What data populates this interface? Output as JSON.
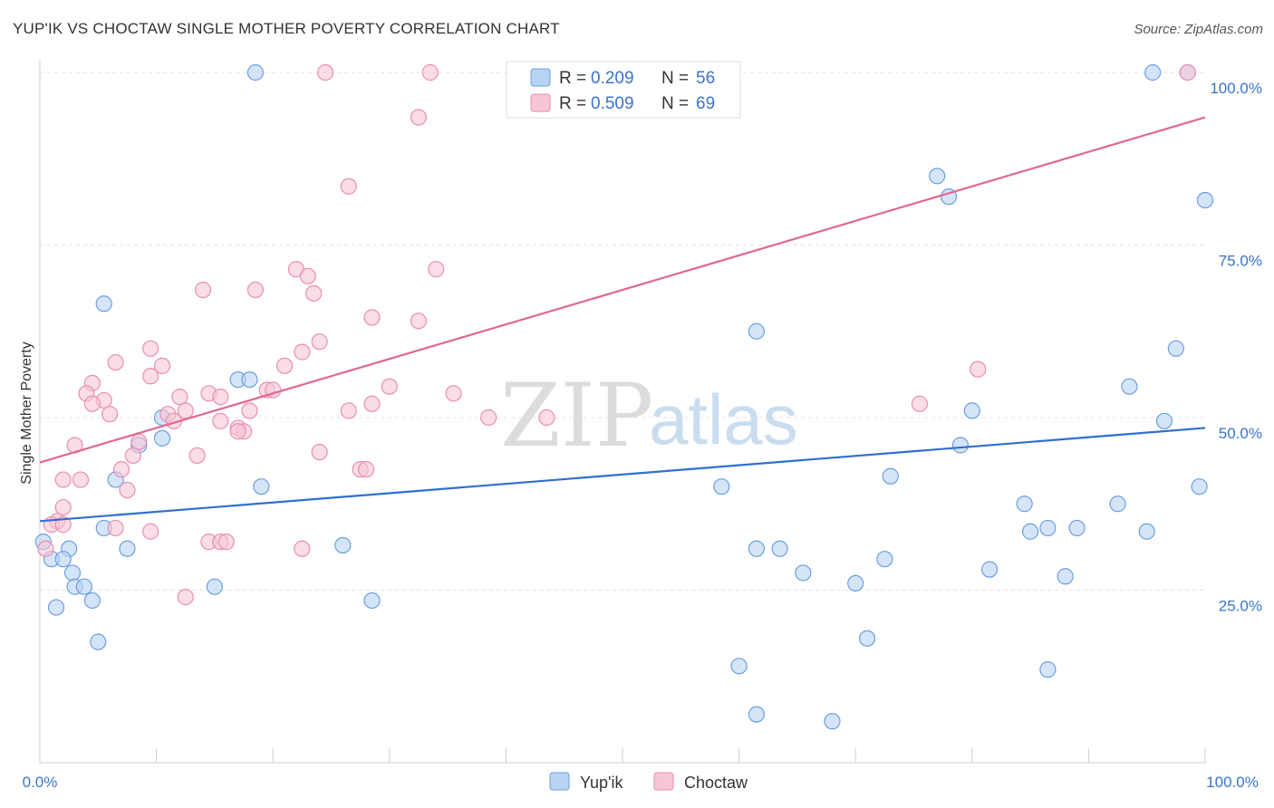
{
  "header": {
    "title": "YUP'IK VS CHOCTAW SINGLE MOTHER POVERTY CORRELATION CHART",
    "source": "Source: ZipAtlas.com"
  },
  "colors": {
    "yupik_fill": "#b9d3f3",
    "yupik_stroke": "#6b9fe0",
    "yupik_line": "#2f6fcf",
    "choctaw_fill": "#f7c6d5",
    "choctaw_stroke": "#e98fae",
    "choctaw_line": "#e06990",
    "tick_label": "#3a74c9"
  },
  "legend": {
    "rows": [
      {
        "r_label": "R =",
        "r_value": "0.209",
        "n_label": "N =",
        "n_value": "56"
      },
      {
        "r_label": "R =",
        "r_value": "0.509",
        "n_label": "N =",
        "n_value": "69"
      }
    ]
  },
  "bottom_legend": {
    "items": [
      "Yup'ik",
      "Choctaw"
    ]
  },
  "watermark": {
    "part1": "ZIP",
    "part2": "atlas"
  },
  "chart_data": {
    "type": "scatter",
    "title": "YUP'IK VS CHOCTAW SINGLE MOTHER POVERTY CORRELATION CHART",
    "xlabel": "",
    "ylabel": "Single Mother Poverty",
    "xlim": [
      0,
      100
    ],
    "ylim": [
      0,
      100
    ],
    "x_tick_labels": [
      "0.0%",
      "100.0%"
    ],
    "y_ticks": [
      25,
      50,
      75,
      100
    ],
    "y_tick_labels": [
      "25.0%",
      "50.0%",
      "75.0%",
      "100.0%"
    ],
    "grid": true,
    "legend_position": "top-center",
    "series": [
      {
        "name": "Yup'ik",
        "r": 0.209,
        "n": 56,
        "trend": {
          "x": [
            0,
            100
          ],
          "y": [
            35.0,
            48.5
          ]
        },
        "points": [
          [
            18.5,
            100
          ],
          [
            95.5,
            100
          ],
          [
            98.5,
            100
          ],
          [
            61.5,
            62.5
          ],
          [
            77.0,
            85.0
          ],
          [
            78.0,
            82.0
          ],
          [
            100.0,
            81.5
          ],
          [
            5.5,
            66.5
          ],
          [
            97.5,
            60.0
          ],
          [
            17.0,
            55.5
          ],
          [
            18.0,
            55.5
          ],
          [
            93.5,
            54.5
          ],
          [
            80.0,
            51.0
          ],
          [
            96.5,
            49.5
          ],
          [
            10.5,
            50.0
          ],
          [
            8.5,
            46.0
          ],
          [
            79.0,
            46.0
          ],
          [
            6.5,
            41.0
          ],
          [
            19.0,
            40.0
          ],
          [
            73.0,
            41.5
          ],
          [
            58.5,
            40.0
          ],
          [
            84.5,
            37.5
          ],
          [
            92.5,
            37.5
          ],
          [
            99.5,
            40.0
          ],
          [
            5.5,
            34.0
          ],
          [
            85.0,
            33.5
          ],
          [
            86.5,
            34.0
          ],
          [
            89.0,
            34.0
          ],
          [
            95.0,
            33.5
          ],
          [
            0.3,
            32.0
          ],
          [
            2.5,
            31.0
          ],
          [
            7.5,
            31.0
          ],
          [
            26.0,
            31.5
          ],
          [
            61.5,
            31.0
          ],
          [
            63.5,
            31.0
          ],
          [
            1.0,
            29.5
          ],
          [
            2.0,
            29.5
          ],
          [
            72.5,
            29.5
          ],
          [
            2.8,
            27.5
          ],
          [
            65.5,
            27.5
          ],
          [
            81.5,
            28.0
          ],
          [
            88.0,
            27.0
          ],
          [
            3.0,
            25.5
          ],
          [
            3.8,
            25.5
          ],
          [
            15.0,
            25.5
          ],
          [
            70.0,
            26.0
          ],
          [
            4.5,
            23.5
          ],
          [
            28.5,
            23.5
          ],
          [
            1.4,
            22.5
          ],
          [
            5.0,
            17.5
          ],
          [
            71.0,
            18.0
          ],
          [
            60.0,
            14.0
          ],
          [
            86.5,
            13.5
          ],
          [
            61.5,
            7.0
          ],
          [
            68.0,
            6.0
          ],
          [
            10.5,
            47.0
          ]
        ]
      },
      {
        "name": "Choctaw",
        "r": 0.509,
        "n": 69,
        "trend": {
          "x": [
            0,
            100
          ],
          "y": [
            43.5,
            93.5
          ]
        },
        "points": [
          [
            24.5,
            100
          ],
          [
            33.5,
            100
          ],
          [
            98.5,
            100
          ],
          [
            32.5,
            93.5
          ],
          [
            26.5,
            83.5
          ],
          [
            22.0,
            71.5
          ],
          [
            34.0,
            71.5
          ],
          [
            23.0,
            70.5
          ],
          [
            14.0,
            68.5
          ],
          [
            18.5,
            68.5
          ],
          [
            23.5,
            68.0
          ],
          [
            28.5,
            64.5
          ],
          [
            32.5,
            64.0
          ],
          [
            24.0,
            61.0
          ],
          [
            9.5,
            60.0
          ],
          [
            22.5,
            59.5
          ],
          [
            6.5,
            58.0
          ],
          [
            10.5,
            57.5
          ],
          [
            21.0,
            57.5
          ],
          [
            80.5,
            57.0
          ],
          [
            9.5,
            56.0
          ],
          [
            4.5,
            55.0
          ],
          [
            30.0,
            54.5
          ],
          [
            19.5,
            54.0
          ],
          [
            20.0,
            54.0
          ],
          [
            4.0,
            53.5
          ],
          [
            14.5,
            53.5
          ],
          [
            35.5,
            53.5
          ],
          [
            5.5,
            52.5
          ],
          [
            12.0,
            53.0
          ],
          [
            15.5,
            53.0
          ],
          [
            4.5,
            52.0
          ],
          [
            28.5,
            52.0
          ],
          [
            75.5,
            52.0
          ],
          [
            6.0,
            50.5
          ],
          [
            11.0,
            50.5
          ],
          [
            12.5,
            51.0
          ],
          [
            18.0,
            51.0
          ],
          [
            26.5,
            51.0
          ],
          [
            38.5,
            50.0
          ],
          [
            43.5,
            50.0
          ],
          [
            11.5,
            49.5
          ],
          [
            15.5,
            49.5
          ],
          [
            17.0,
            48.5
          ],
          [
            17.5,
            48.0
          ],
          [
            8.5,
            46.5
          ],
          [
            3.0,
            46.0
          ],
          [
            24.0,
            45.0
          ],
          [
            8.0,
            44.5
          ],
          [
            13.5,
            44.5
          ],
          [
            7.0,
            42.5
          ],
          [
            27.5,
            42.5
          ],
          [
            28.0,
            42.5
          ],
          [
            2.0,
            41.0
          ],
          [
            3.5,
            41.0
          ],
          [
            7.5,
            39.5
          ],
          [
            2.0,
            37.0
          ],
          [
            1.5,
            35.0
          ],
          [
            1.0,
            34.5
          ],
          [
            2.0,
            34.5
          ],
          [
            6.5,
            34.0
          ],
          [
            9.5,
            33.5
          ],
          [
            14.5,
            32.0
          ],
          [
            15.5,
            32.0
          ],
          [
            16.0,
            32.0
          ],
          [
            22.5,
            31.0
          ],
          [
            12.5,
            24.0
          ],
          [
            0.5,
            31.0
          ],
          [
            17.0,
            48.0
          ]
        ]
      }
    ]
  }
}
